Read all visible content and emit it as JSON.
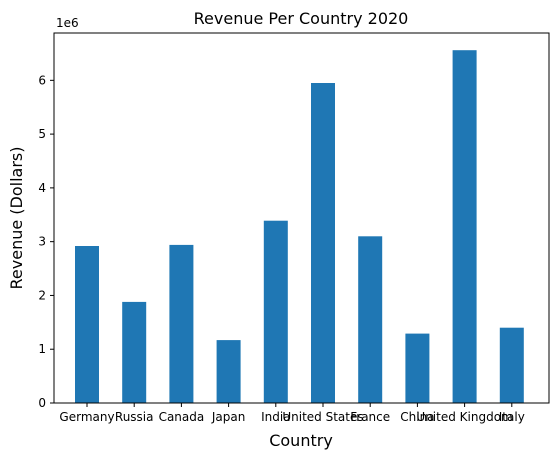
{
  "chart_data": {
    "type": "bar",
    "title": "Revenue Per Country 2020",
    "xlabel": "Country",
    "ylabel": "Revenue (Dollars)",
    "y_offset_label": "1e6",
    "categories": [
      "Germany",
      "Russia",
      "Canada",
      "Japan",
      "India",
      "United States",
      "France",
      "China",
      "United Kingdom",
      "Italy"
    ],
    "values": [
      2920000,
      1880000,
      2940000,
      1170000,
      3390000,
      5950000,
      3100000,
      1290000,
      6560000,
      1400000
    ],
    "y_ticks": [
      "0",
      "1",
      "2",
      "3",
      "4",
      "5",
      "6"
    ],
    "ylim": [
      0,
      6880000
    ],
    "grid": false,
    "bar_color": "#1f77b4"
  }
}
